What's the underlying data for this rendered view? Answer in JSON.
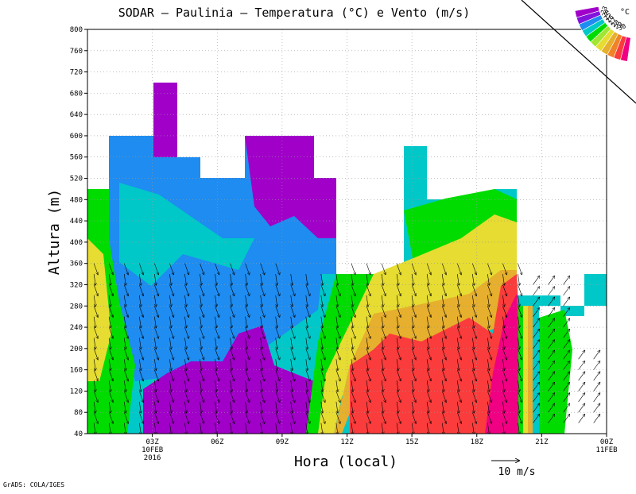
{
  "chart_data": {
    "type": "heatmap",
    "title": "SODAR – Paulinia – Temperatura (°C) e Vento (m/s)",
    "xlabel": "Hora (local)",
    "ylabel": "Altura (m)",
    "ylim": [
      40,
      800
    ],
    "y_ticks": [
      "40",
      "80",
      "120",
      "160",
      "200",
      "240",
      "280",
      "320",
      "360",
      "400",
      "440",
      "480",
      "520",
      "560",
      "600",
      "640",
      "680",
      "720",
      "760",
      "800"
    ],
    "x_ticks": [
      {
        "hour": 3,
        "label": "03Z",
        "date": "10FEB",
        "year": "2016"
      },
      {
        "hour": 6,
        "label": "06Z"
      },
      {
        "hour": 9,
        "label": "09Z"
      },
      {
        "hour": 12,
        "label": "12Z"
      },
      {
        "hour": 15,
        "label": "15Z"
      },
      {
        "hour": 18,
        "label": "18Z"
      },
      {
        "hour": 21,
        "label": "21Z"
      },
      {
        "hour": 24,
        "label": "00Z",
        "date": "11FEB"
      }
    ],
    "xlim_hours": [
      0,
      24
    ],
    "grid": true,
    "colorbar": {
      "placement": "top-right",
      "unit": "°C",
      "levels": [
        "23",
        "24",
        "25",
        "26",
        "27",
        "28",
        "29",
        "30"
      ],
      "colors": [
        "#a000c8",
        "#8214dc",
        "#1e8cf0",
        "#00c8c8",
        "#00dc00",
        "#a0e632",
        "#e6dc32",
        "#e6af2d",
        "#f08228",
        "#fa3c3c",
        "#f00082"
      ]
    },
    "temperature_regions": [
      {
        "level": "25-26",
        "color": "#00c8c8",
        "description": "background upper layer"
      },
      {
        "level": "24-25",
        "color": "#1e8cf0",
        "description": "blue core 00Z-12Z"
      },
      {
        "level": "23-24",
        "color": "#a000c8",
        "description": "purple pockets 04Z-11Z"
      },
      {
        "level": ">30",
        "color": "#f00082",
        "description": "near surface 19Z-21Z"
      }
    ],
    "wind_reference": {
      "value": 10,
      "label": "10 m/s"
    },
    "wind_description": "Mostly southward/downward arrows 00Z-20Z, northeastward arrows after 20Z"
  },
  "credit": "GrADS: COLA/IGES"
}
